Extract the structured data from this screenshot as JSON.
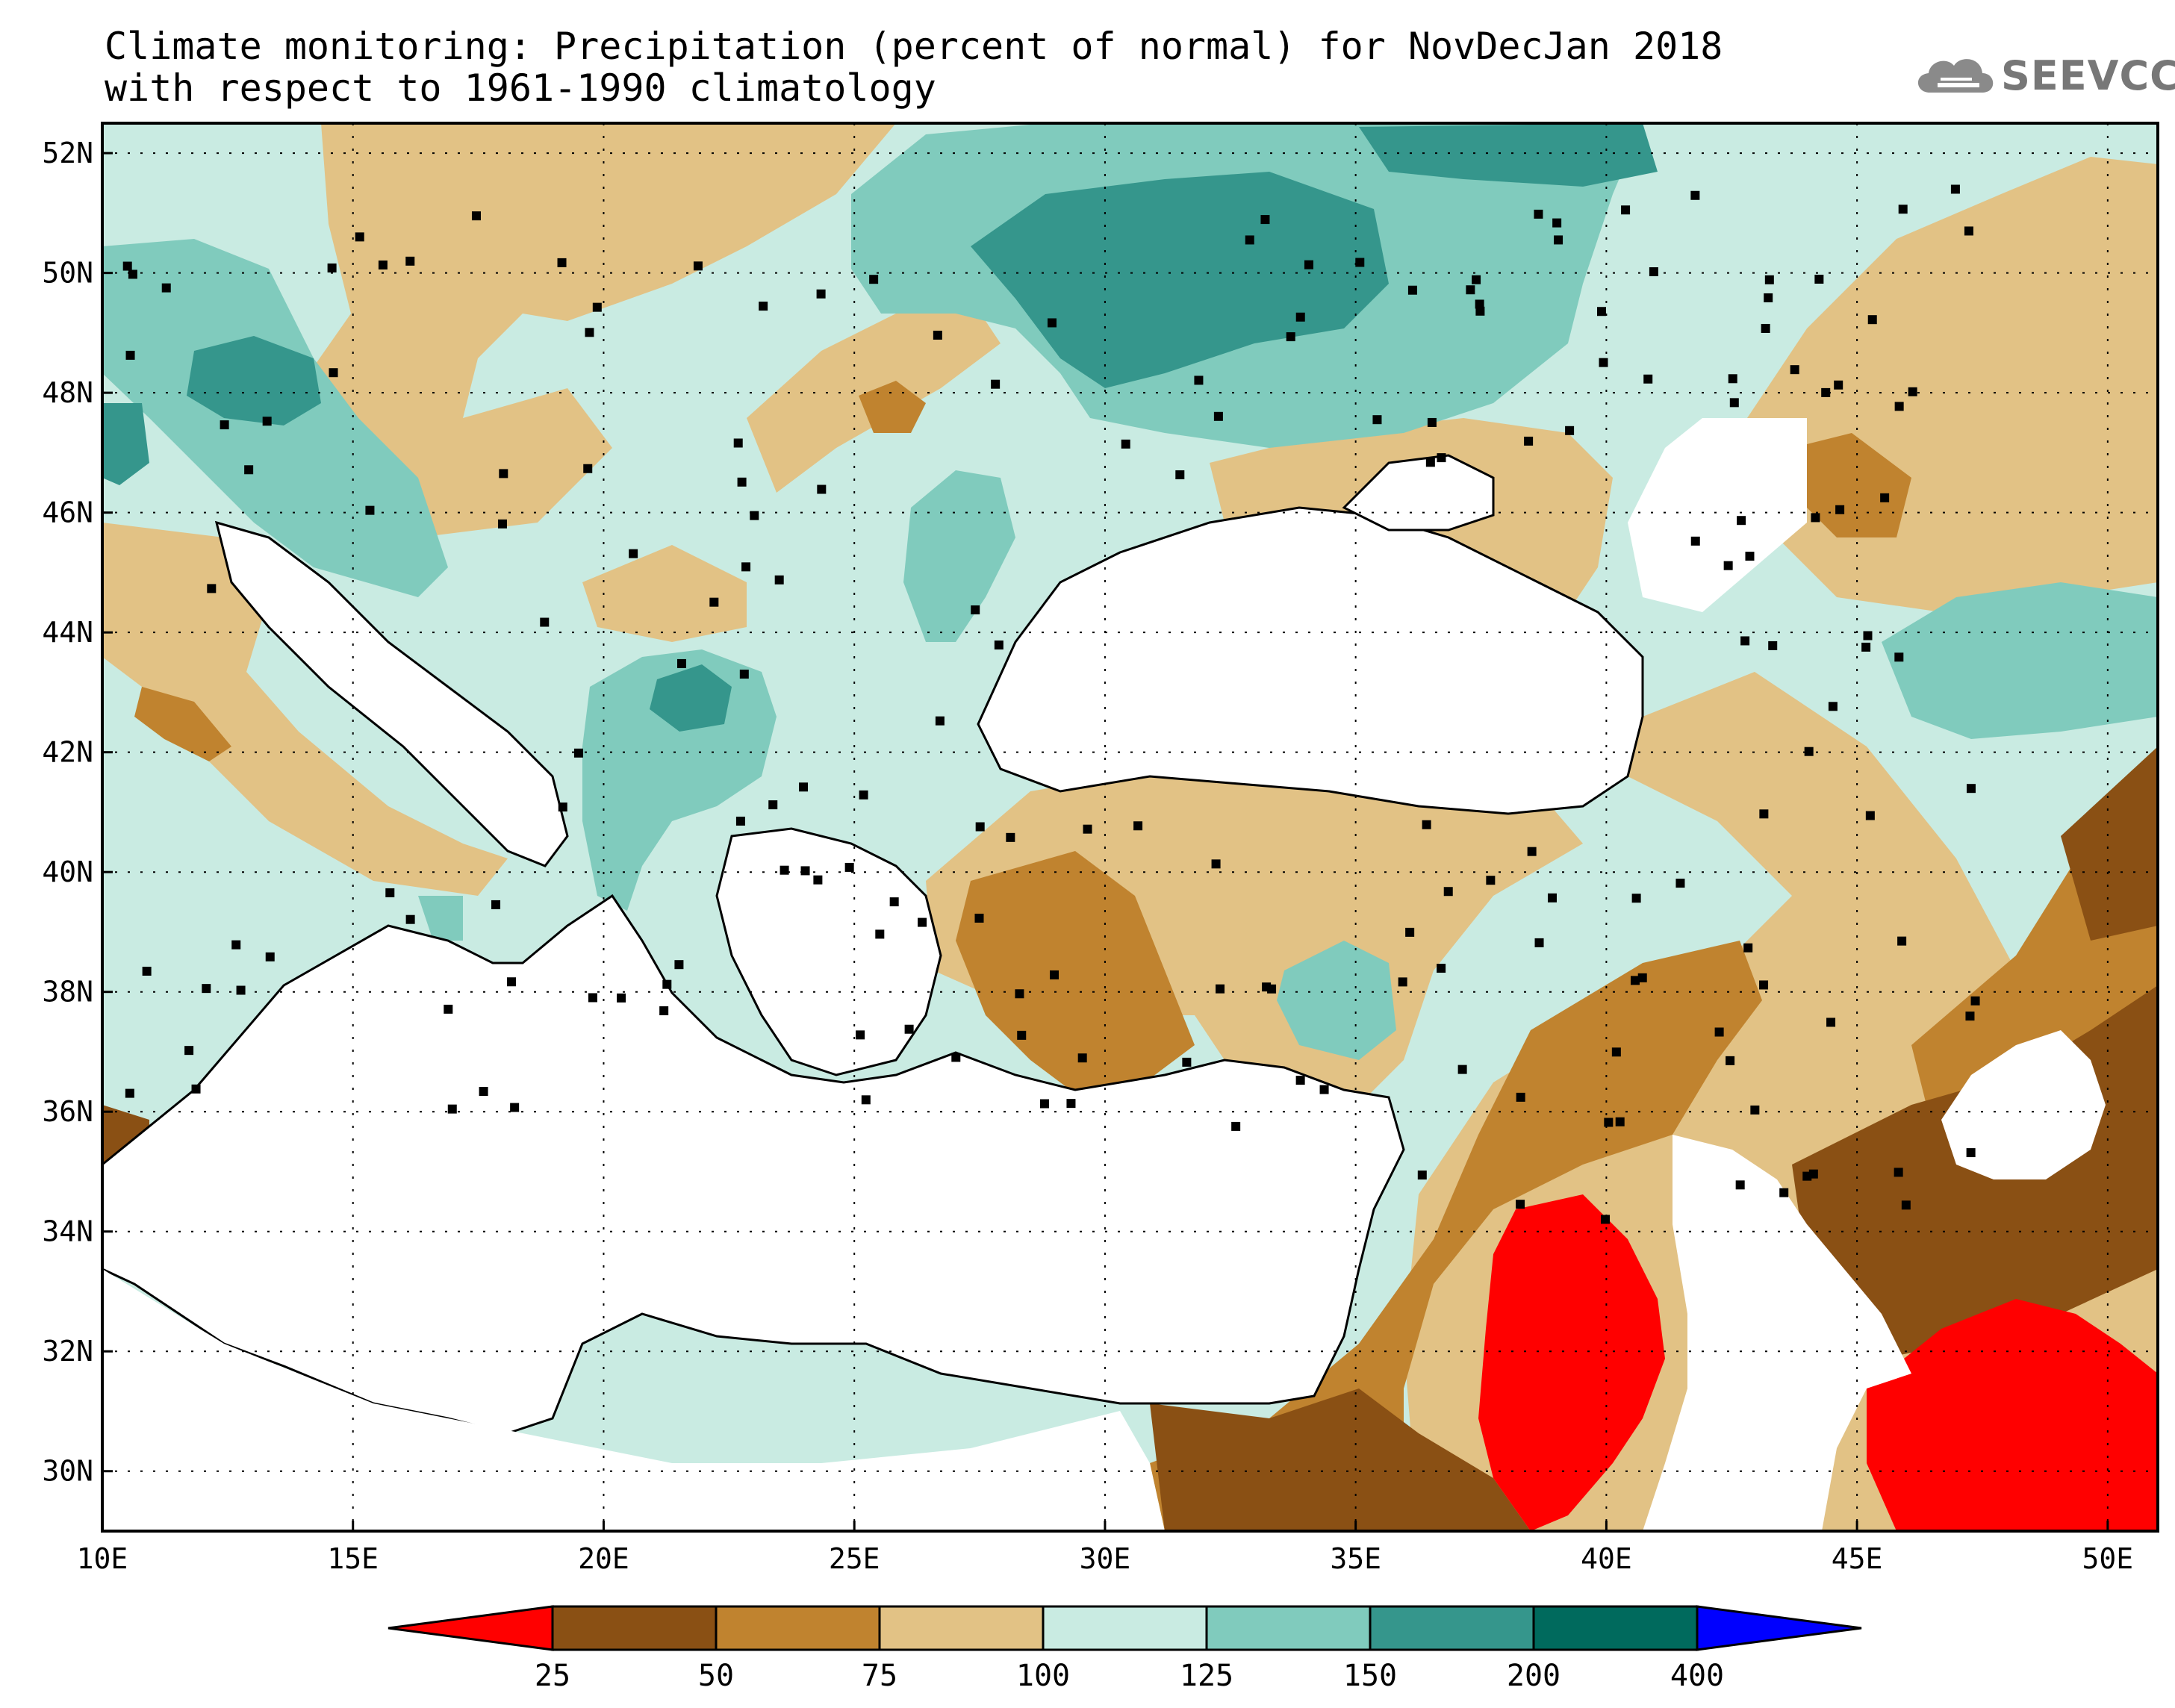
{
  "title": {
    "line1": "Climate monitoring: Precipitation (percent of normal) for NovDecJan 2018",
    "line2": "with respect to 1961-1990 climatology"
  },
  "logo": {
    "text": "SEEVCCC",
    "icon": "cloud-icon"
  },
  "map": {
    "lon_range": [
      10,
      51
    ],
    "lat_range": [
      29,
      52.5
    ],
    "lon_ticks": [
      "10E",
      "15E",
      "20E",
      "25E",
      "30E",
      "35E",
      "40E",
      "45E",
      "50E"
    ],
    "lat_ticks": [
      "30N",
      "32N",
      "34N",
      "36N",
      "38N",
      "40N",
      "42N",
      "44N",
      "46N",
      "48N",
      "50N",
      "52N"
    ],
    "grid": "dotted"
  },
  "colorbar": {
    "labels": [
      "25",
      "50",
      "75",
      "100",
      "125",
      "150",
      "200",
      "400"
    ],
    "colors": [
      "#ff0000",
      "#8a5014",
      "#c0832f",
      "#e2c285",
      "#c9ebe2",
      "#80cbbd",
      "#35968c",
      "#006a5d",
      "#0000ff"
    ]
  }
}
